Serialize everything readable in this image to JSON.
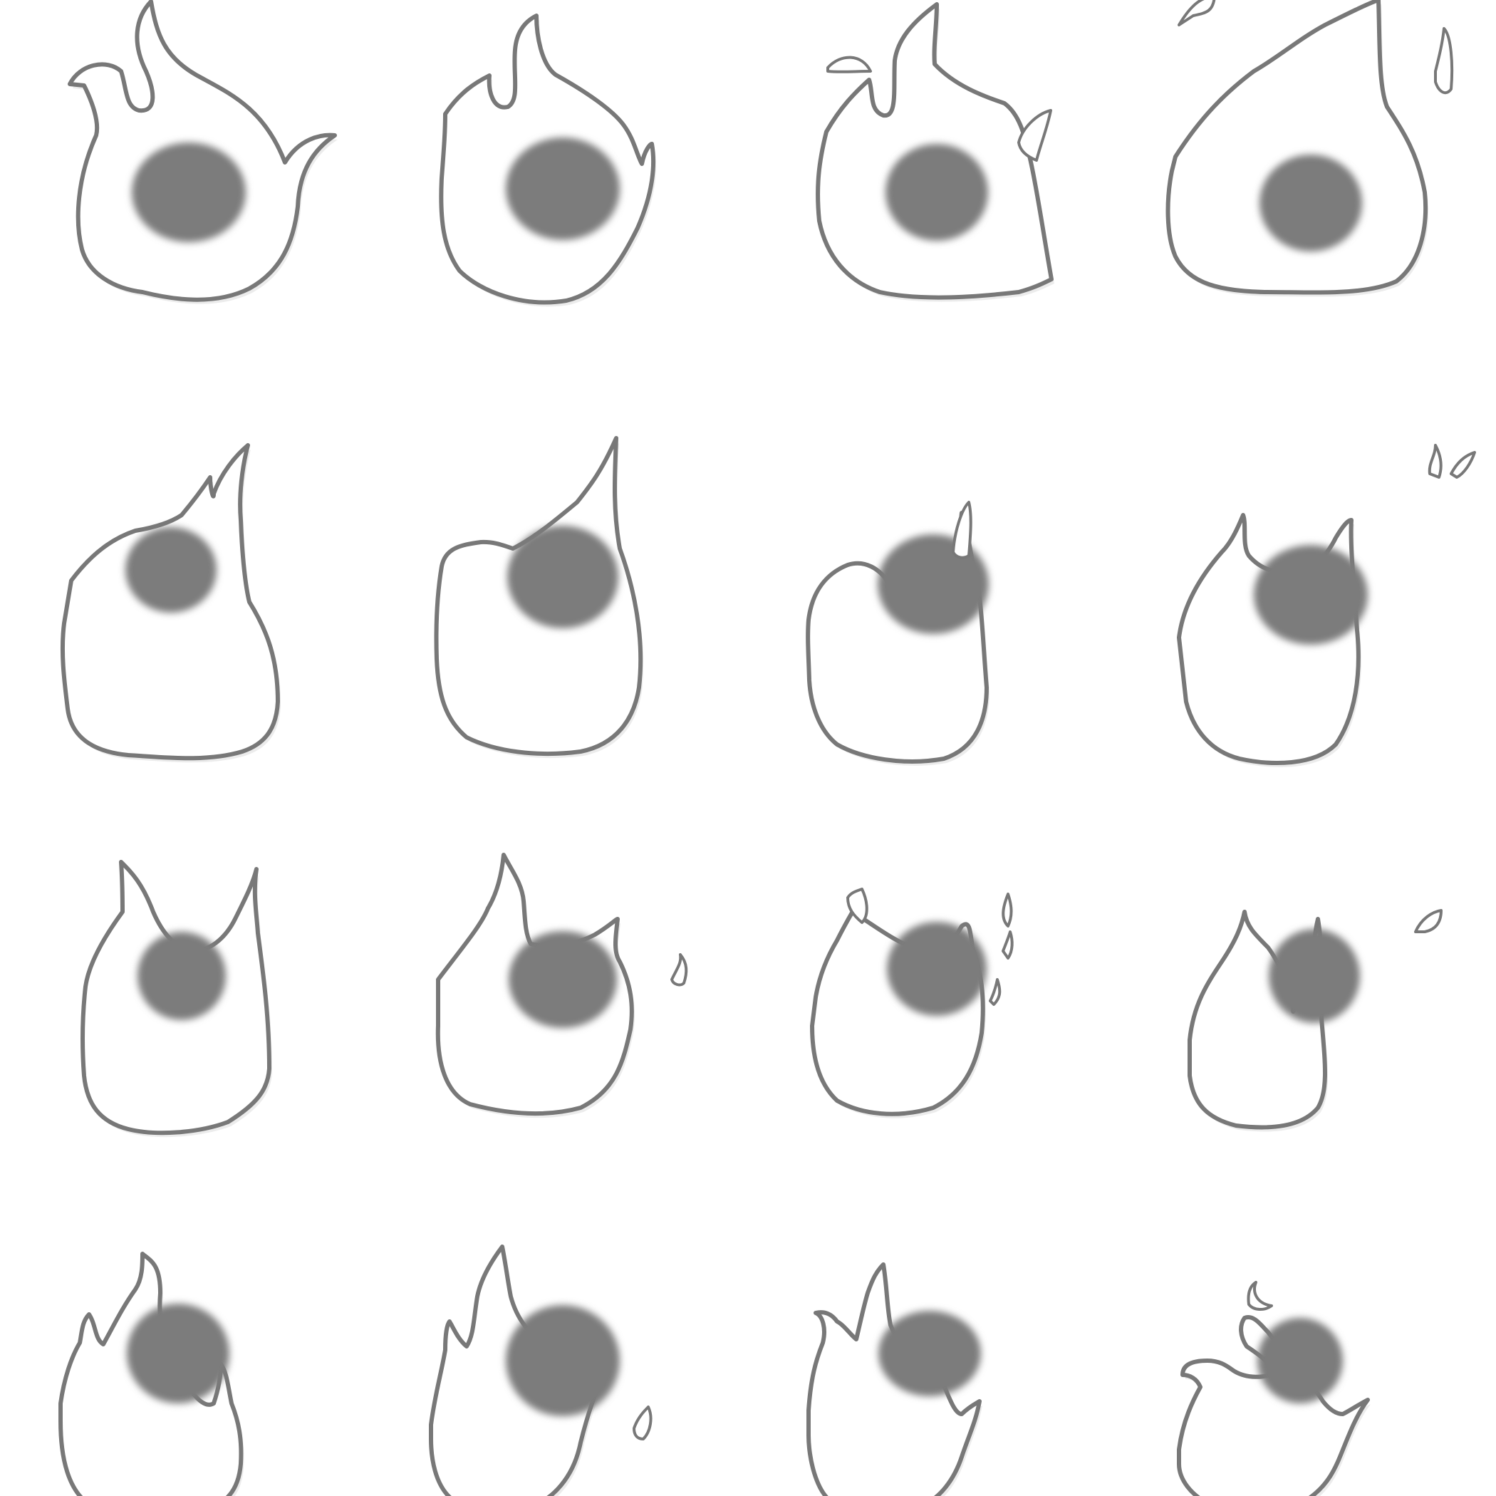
{
  "sprite_sheet": {
    "rows": 4,
    "cols": 4,
    "colors": {
      "background": "#ffffff",
      "outline": "#787878",
      "fill": "#ffffff",
      "shade": "#ececec",
      "core": "#7b7b7b"
    },
    "frames": [
      {
        "id": "flame-frame-1",
        "tongue": "center-left",
        "embers": 0
      },
      {
        "id": "flame-frame-2",
        "tongue": "center",
        "embers": 0
      },
      {
        "id": "flame-frame-3",
        "tongue": "center",
        "embers": 2
      },
      {
        "id": "flame-frame-4",
        "tongue": "right",
        "embers": 2
      },
      {
        "id": "flame-frame-5",
        "tongue": "right",
        "embers": 0
      },
      {
        "id": "flame-frame-6",
        "tongue": "right",
        "embers": 0
      },
      {
        "id": "flame-frame-7",
        "tongue": "right-split",
        "embers": 1
      },
      {
        "id": "flame-frame-8",
        "tongue": "twin",
        "embers": 2
      },
      {
        "id": "flame-frame-9",
        "tongue": "twin",
        "embers": 0
      },
      {
        "id": "flame-frame-10",
        "tongue": "left",
        "embers": 1
      },
      {
        "id": "flame-frame-11",
        "tongue": "twin-low",
        "embers": 4
      },
      {
        "id": "flame-frame-12",
        "tongue": "left-split",
        "embers": 1
      },
      {
        "id": "flame-frame-13",
        "tongue": "tall",
        "embers": 0
      },
      {
        "id": "flame-frame-14",
        "tongue": "tall",
        "embers": 1
      },
      {
        "id": "flame-frame-15",
        "tongue": "tall-center",
        "embers": 0
      },
      {
        "id": "flame-frame-16",
        "tongue": "curl",
        "embers": 1
      }
    ]
  }
}
